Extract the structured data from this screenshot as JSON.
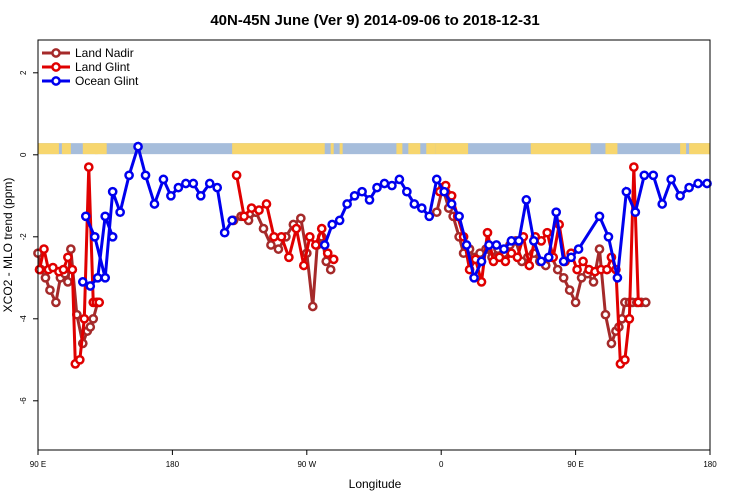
{
  "chart_data": {
    "type": "line",
    "title": "40N-45N June (Ver 9)   2014-09-06 to 2018-12-31",
    "xlabel": "Longitude",
    "ylabel": "XCO2 - MLO trend (ppm)",
    "x_ticks": [
      {
        "x": 90,
        "label": "90 E"
      },
      {
        "x": 180,
        "label": "180"
      },
      {
        "x": 270,
        "label": "90 W"
      },
      {
        "x": 360,
        "label": "0"
      },
      {
        "x": 450,
        "label": "90 E"
      },
      {
        "x": 540,
        "label": "180"
      }
    ],
    "y_ticks": [
      2,
      0,
      -2,
      -4,
      -6
    ],
    "xlim": [
      90,
      540
    ],
    "ylim": [
      -7.2,
      2.8
    ],
    "legend": {
      "position": "top-left"
    },
    "land_ocean_bar": {
      "y": 0.15,
      "land_color": "#F7D66E",
      "ocean_color": "#A6BDDB"
    },
    "series": [
      {
        "name": "Land Nadir",
        "color": "#A52A2A",
        "x": [
          90,
          92,
          95,
          98,
          102,
          105,
          108,
          110,
          112,
          116,
          120,
          123,
          125,
          127,
          130,
          221,
          226,
          231,
          236,
          241,
          246,
          251,
          256,
          261,
          266,
          270,
          274,
          277,
          280,
          283,
          286,
          357,
          361,
          365,
          368,
          372,
          375,
          379,
          382,
          386,
          390,
          394,
          398,
          402,
          406,
          410,
          414,
          418,
          422,
          426,
          430,
          434,
          438,
          442,
          446,
          450,
          454,
          458,
          462,
          466,
          470,
          474,
          477,
          479,
          481,
          483,
          486,
          488,
          491,
          494,
          497
        ],
        "y": [
          -2.4,
          -2.8,
          -3.0,
          -3.3,
          -3.6,
          -3.0,
          -2.9,
          -3.1,
          -2.3,
          -3.9,
          -4.6,
          -4.3,
          -4.2,
          -4.0,
          -3.6,
          -1.6,
          -1.5,
          -1.6,
          -1.4,
          -1.8,
          -2.2,
          -2.3,
          -2.0,
          -1.7,
          -1.55,
          -2.4,
          -3.7,
          -2.2,
          -2.0,
          -2.6,
          -2.8,
          -1.4,
          -0.8,
          -1.3,
          -1.5,
          -2.0,
          -2.4,
          -2.3,
          -2.5,
          -2.4,
          -2.3,
          -2.5,
          -2.3,
          -2.4,
          -2.2,
          -2.1,
          -2.6,
          -2.5,
          -2.4,
          -2.6,
          -2.7,
          -2.5,
          -2.8,
          -3.0,
          -3.3,
          -3.6,
          -3.0,
          -2.9,
          -3.1,
          -2.3,
          -3.9,
          -4.6,
          -4.3,
          -4.2,
          -4.0,
          -3.6,
          -3.6,
          -3.6,
          -3.6,
          -3.6,
          -3.6
        ]
      },
      {
        "name": "Land Glint",
        "color": "#E00000",
        "x": [
          91,
          94,
          97,
          100,
          104,
          107,
          110,
          113,
          115,
          118,
          121,
          124,
          127,
          129,
          131,
          223,
          228,
          233,
          238,
          243,
          248,
          253,
          258,
          263,
          268,
          272,
          276,
          280,
          284,
          288,
          359,
          363,
          367,
          371,
          375,
          379,
          383,
          387,
          391,
          395,
          399,
          403,
          407,
          411,
          415,
          419,
          423,
          427,
          431,
          435,
          439,
          443,
          447,
          451,
          455,
          459,
          463,
          467,
          471,
          474,
          477,
          480,
          483,
          486,
          489,
          492
        ],
        "y": [
          -2.8,
          -2.3,
          -2.8,
          -2.75,
          -2.85,
          -2.8,
          -2.5,
          -2.8,
          -5.1,
          -5.0,
          -4.0,
          -0.3,
          -3.6,
          -3.6,
          -3.6,
          -0.5,
          -1.5,
          -1.3,
          -1.35,
          -1.2,
          -2.0,
          -2.0,
          -2.5,
          -1.8,
          -2.7,
          -2.0,
          -2.2,
          -1.8,
          -2.4,
          -2.55,
          -0.9,
          -0.75,
          -1.0,
          -1.5,
          -2.0,
          -2.8,
          -2.55,
          -3.1,
          -1.9,
          -2.6,
          -2.5,
          -2.6,
          -2.4,
          -2.5,
          -2.0,
          -2.7,
          -2.0,
          -2.1,
          -1.9,
          -2.5,
          -1.7,
          -2.6,
          -2.4,
          -2.8,
          -2.6,
          -2.8,
          -2.85,
          -2.8,
          -2.8,
          -2.5,
          -2.8,
          -5.1,
          -5.0,
          -4.0,
          -0.3,
          -3.6
        ]
      },
      {
        "name": "Ocean Glint",
        "color": "#0000EE",
        "x": [
          122,
          128,
          135,
          140,
          145,
          151,
          157,
          162,
          168,
          174,
          179,
          184,
          189,
          194,
          199,
          205,
          210,
          215,
          220,
          282,
          287,
          292,
          297,
          302,
          307,
          312,
          317,
          322,
          327,
          332,
          337,
          342,
          347,
          352,
          357,
          362,
          367,
          372,
          377,
          382,
          387,
          392,
          397,
          402,
          407,
          412,
          417,
          422,
          427,
          432,
          437,
          442,
          447,
          452,
          466,
          472,
          478,
          484,
          490,
          496,
          502,
          508,
          514,
          520,
          526,
          532,
          538,
          120,
          125,
          130,
          135,
          140
        ],
        "y": [
          -1.5,
          -2.0,
          -3.0,
          -0.9,
          -1.4,
          -0.5,
          0.2,
          -0.5,
          -1.2,
          -0.6,
          -1.0,
          -0.8,
          -0.7,
          -0.7,
          -1.0,
          -0.7,
          -0.8,
          -1.9,
          -1.6,
          -2.2,
          -1.7,
          -1.6,
          -1.2,
          -1.0,
          -0.9,
          -1.1,
          -0.8,
          -0.7,
          -0.75,
          -0.6,
          -0.9,
          -1.2,
          -1.3,
          -1.5,
          -0.6,
          -0.9,
          -1.2,
          -1.5,
          -2.2,
          -3.0,
          -2.6,
          -2.2,
          -2.2,
          -2.3,
          -2.1,
          -2.1,
          -1.1,
          -2.1,
          -2.6,
          -2.5,
          -1.4,
          -2.6,
          -2.5,
          -2.3,
          -1.5,
          -2.0,
          -3.0,
          -0.9,
          -1.4,
          -0.5,
          -0.5,
          -1.2,
          -0.6,
          -1.0,
          -0.8,
          -0.7,
          -0.7,
          -3.1,
          -3.2,
          -3.0,
          -1.5,
          -2.0
        ]
      }
    ]
  }
}
